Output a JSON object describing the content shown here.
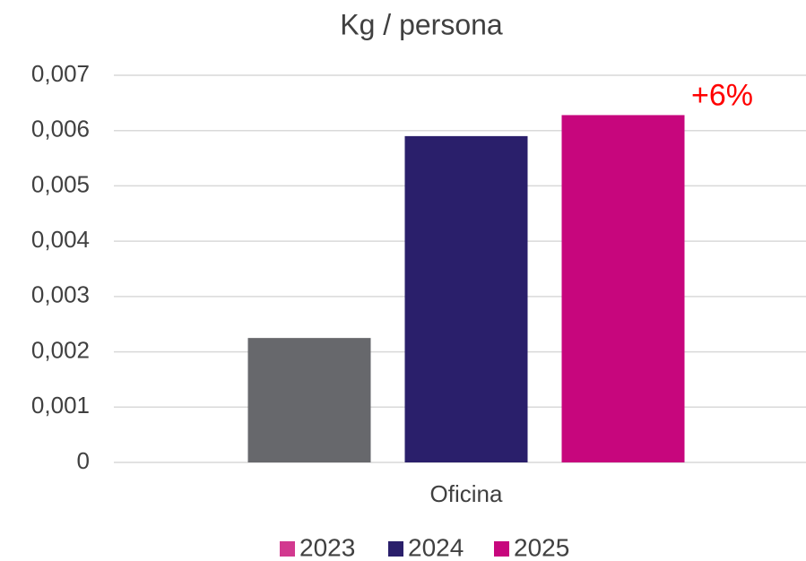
{
  "chart_data": {
    "type": "bar",
    "title": "Kg / persona",
    "categories": [
      "Oficina"
    ],
    "series": [
      {
        "name": "2023",
        "color": "#67686c",
        "legend_color": "#d2398f",
        "values": [
          0.00225
        ]
      },
      {
        "name": "2024",
        "color": "#2a1f6b",
        "values": [
          0.0059
        ]
      },
      {
        "name": "2025",
        "color": "#c7067d",
        "values": [
          0.00628
        ]
      }
    ],
    "annotations": [
      {
        "text": "+6%",
        "color": "#ff0000",
        "series": 2,
        "index": 0
      }
    ],
    "ylim": [
      0,
      0.007
    ],
    "yticks": [
      0,
      {
        "value": 0.001,
        "label": "0,001"
      },
      {
        "value": 0.002,
        "label": "0,002"
      },
      {
        "value": 0.003,
        "label": "0,003"
      },
      {
        "value": 0.004,
        "label": "0,004"
      },
      {
        "value": 0.005,
        "label": "0,005"
      },
      {
        "value": 0.006,
        "label": "0,006"
      },
      {
        "value": 0.007,
        "label": "0,007"
      }
    ],
    "grid": true,
    "legend": "bottom"
  }
}
